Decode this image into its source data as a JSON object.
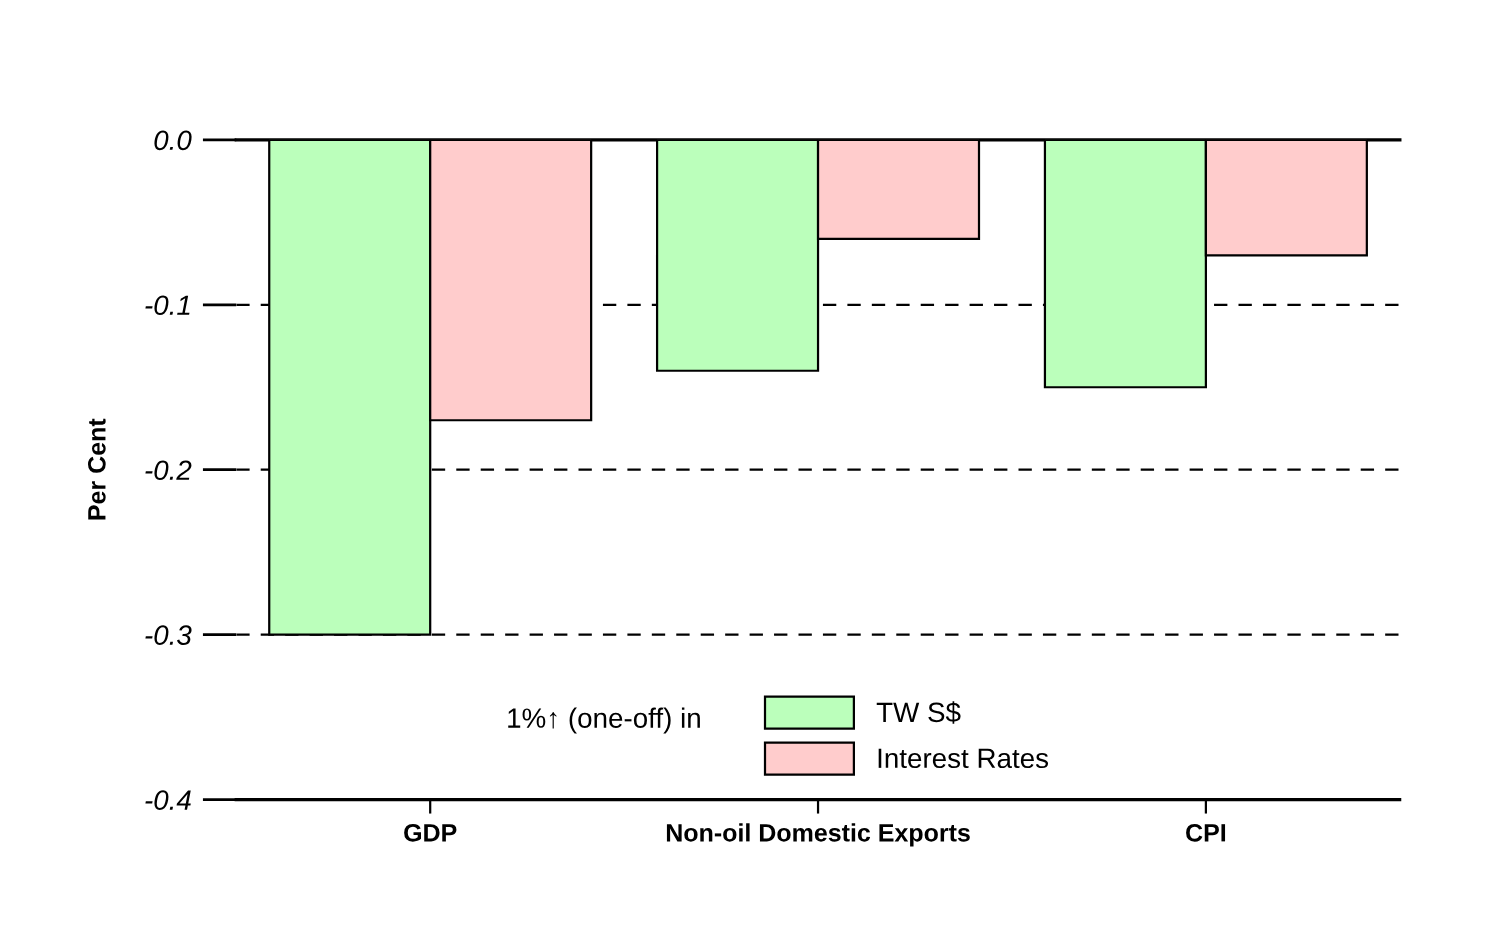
{
  "chart_data": {
    "type": "bar",
    "ylabel": "Per Cent",
    "categories": [
      "GDP",
      "Non-oil Domestic Exports",
      "CPI"
    ],
    "series": [
      {
        "name": "TW S$",
        "color": "#bbffbb",
        "values": [
          -0.3,
          -0.14,
          -0.15
        ]
      },
      {
        "name": "Interest Rates",
        "color": "#ffcccc",
        "values": [
          -0.17,
          -0.06,
          -0.07
        ]
      }
    ],
    "ylim": [
      -0.4,
      0.0
    ],
    "yticks": [
      {
        "value": 0.0,
        "label": "0.0"
      },
      -0.1,
      -0.2,
      -0.3,
      -0.4
    ],
    "grid": "y",
    "legend": "bottom right",
    "annotations": [
      "1%↑ (one-off) in"
    ]
  }
}
